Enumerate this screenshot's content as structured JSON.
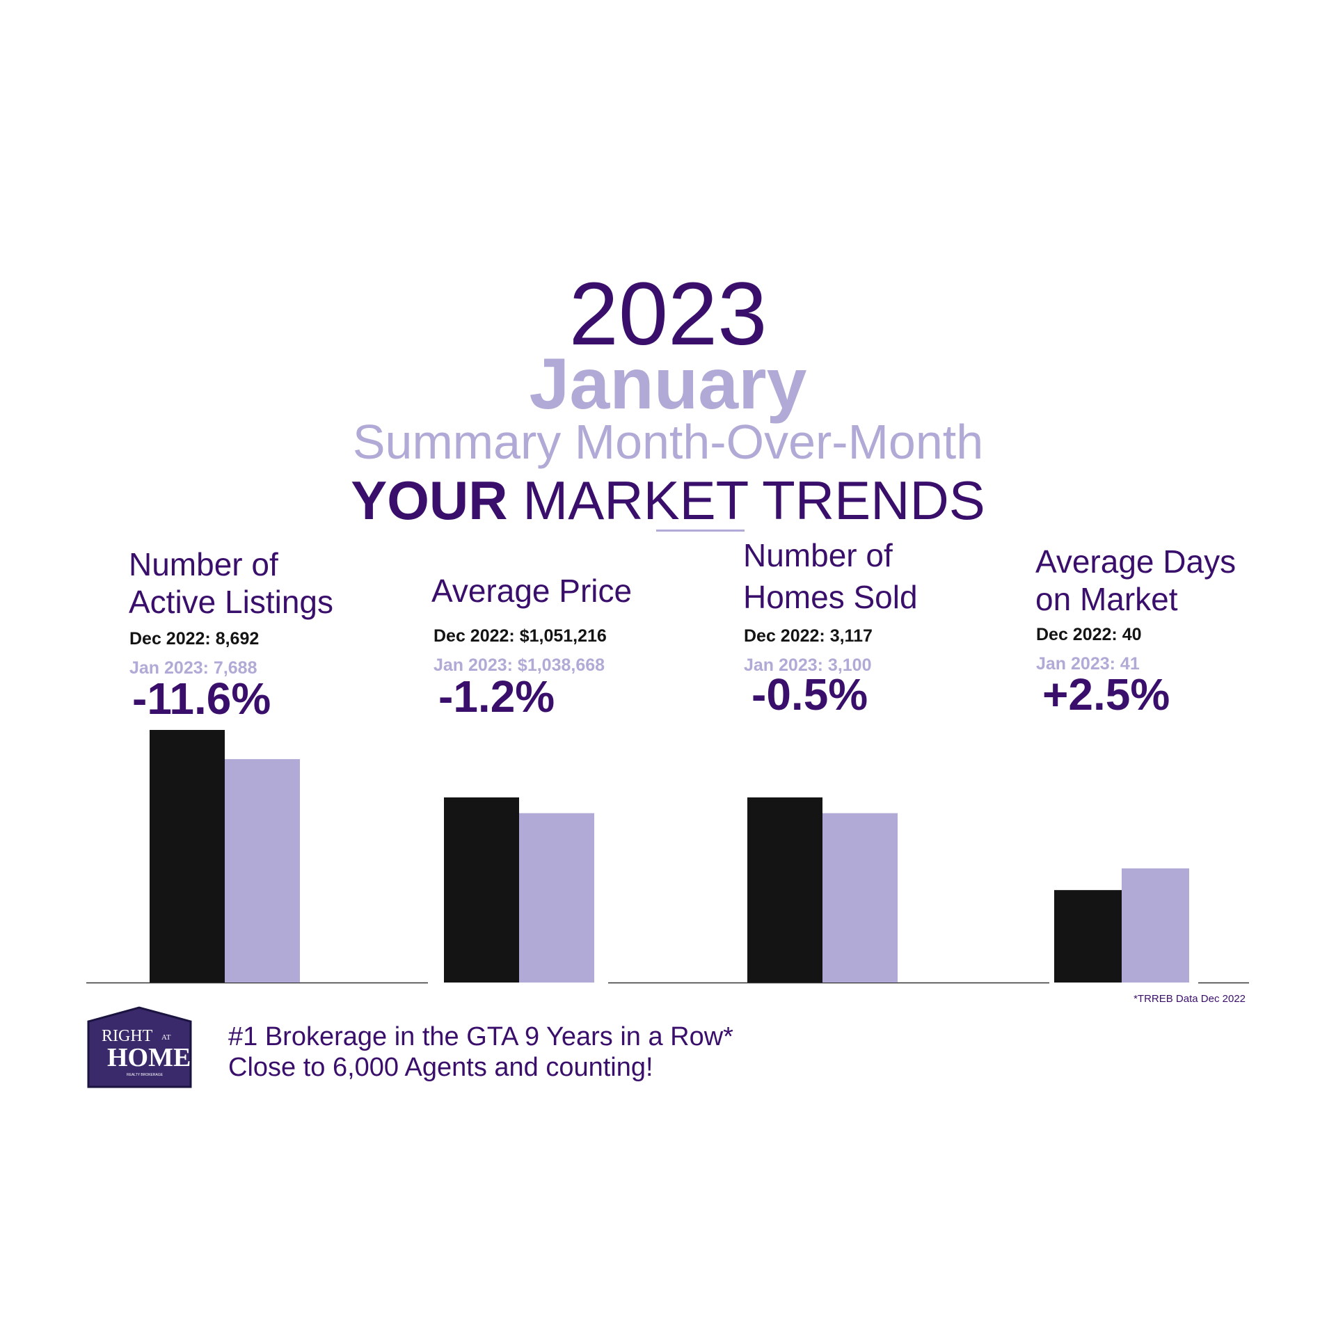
{
  "header": {
    "year": "2023",
    "month": "January",
    "summary": "Summary Month-Over-Month",
    "trends_bold": "YOUR",
    "trends_rest": " MARKET TRENDS"
  },
  "colors": {
    "primary": "#3a0f6b",
    "accent": "#b1a9d6",
    "dark_bar": "#141414"
  },
  "chart_data": [
    {
      "type": "bar",
      "title": "Number of Active Listings",
      "categories": [
        "Dec 2022",
        "Jan 2023"
      ],
      "values": [
        8692,
        7688
      ],
      "ylim": [
        0,
        8692
      ],
      "change": "-11.6%",
      "labels": [
        "Dec 2022: 8,692",
        "Jan 2023: 7,688"
      ]
    },
    {
      "type": "bar",
      "title": "Average Price",
      "categories": [
        "Dec 2022",
        "Jan 2023"
      ],
      "values": [
        1051216,
        1038668
      ],
      "change": "-1.2%",
      "labels": [
        "Dec 2022: $1,051,216",
        "Jan 2023: $1,038,668"
      ]
    },
    {
      "type": "bar",
      "title": "Number of Homes Sold",
      "categories": [
        "Dec 2022",
        "Jan 2023"
      ],
      "values": [
        3117,
        3100
      ],
      "change": "-0.5%",
      "labels": [
        "Dec 2022: 3,117",
        "Jan 2023: 3,100"
      ]
    },
    {
      "type": "bar",
      "title": "Average Days on Market",
      "categories": [
        "Dec 2022",
        "Jan 2023"
      ],
      "values": [
        40,
        41
      ],
      "change": "+2.5%",
      "labels": [
        "Dec 2022: 40",
        "Jan 2023: 41"
      ]
    }
  ],
  "metrics": [
    {
      "title_line1": "Number of",
      "title_line2": "Active Listings"
    },
    {
      "title_line1": "Average Price",
      "title_line2": ""
    },
    {
      "title_line1": "Number of",
      "title_line2": "Homes Sold"
    },
    {
      "title_line1": "Average Days",
      "title_line2": "on Market"
    }
  ],
  "source_note": "*TRREB Data Dec 2022",
  "logo": {
    "line1": "RIGHT",
    "line1_small": "AT",
    "line2": "HOME",
    "line3": "REALTY BROKERAGE"
  },
  "tagline": {
    "line1": "#1 Brokerage in the GTA 9 Years in a Row*",
    "line2": "Close to 6,000 Agents and counting!"
  }
}
